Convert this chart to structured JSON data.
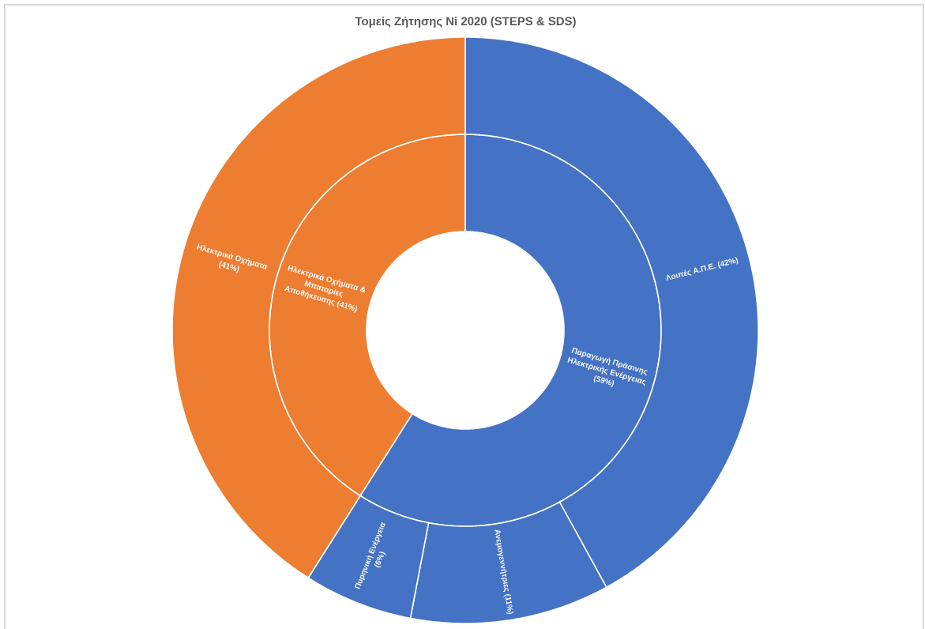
{
  "chart_data": [
    {
      "type": "donut",
      "title": "Τομείς Ζήτησης Ni 2020 (STEPS & SDS)",
      "categories": [
        "Παραγωγή Πράσινης Ηλεκτρικής Ενέργειας",
        "Ηλεκτρικά Οχήματα & Μπαταρίες Αποθήκευσης"
      ],
      "values": [
        59,
        41
      ],
      "value_labels": [
        "(59%)",
        "(41%)"
      ],
      "colors": [
        "#4472c4",
        "#ed7d31"
      ]
    },
    {
      "type": "donut",
      "categories": [
        "Λοιπές Α.Π.Ε.",
        "Ανεμογεννήτριες",
        "Πυρηνική Ενέργεια",
        "Ηλεκτρικά Οχήματα"
      ],
      "values": [
        42,
        11,
        6,
        41
      ],
      "value_labels": [
        "(42%)",
        "(11%)",
        "(6%)",
        "(41%)"
      ],
      "colors": [
        "#4472c4",
        "#4472c4",
        "#4472c4",
        "#ed7d31"
      ]
    }
  ]
}
